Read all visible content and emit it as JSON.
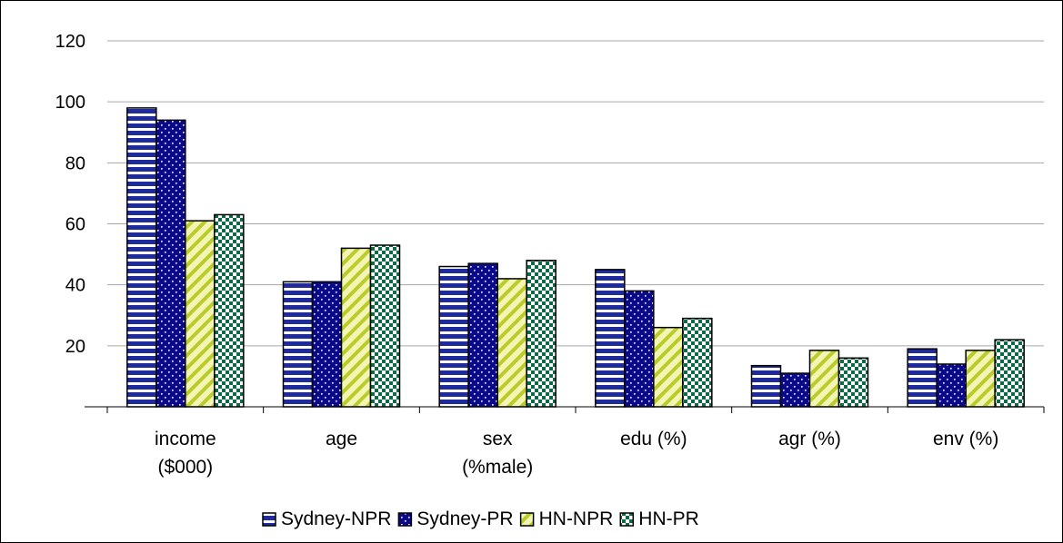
{
  "chart_data": {
    "type": "bar",
    "categories": [
      [
        "income",
        "($000)"
      ],
      [
        "age"
      ],
      [
        "sex",
        "(%male)"
      ],
      [
        "edu (%)"
      ],
      [
        "agr (%)"
      ],
      [
        "env (%)"
      ]
    ],
    "series": [
      {
        "name": "Sydney-NPR",
        "values": [
          98,
          41,
          46,
          45,
          13.5,
          19
        ],
        "pattern": "hstripe",
        "color": "#1f2a9c"
      },
      {
        "name": "Sydney-PR",
        "values": [
          94,
          41,
          47,
          38,
          11,
          14
        ],
        "pattern": "dots",
        "color": "#0a0a8a"
      },
      {
        "name": "HN-NPR",
        "values": [
          61,
          52,
          42,
          26,
          18.5,
          18.5
        ],
        "pattern": "diagonal",
        "color": "#b8cc2a"
      },
      {
        "name": "HN-PR",
        "values": [
          63,
          53,
          48,
          29,
          16,
          22
        ],
        "pattern": "checker",
        "color": "#0b6b45"
      }
    ],
    "y_ticks": [
      20,
      40,
      60,
      80,
      100,
      120
    ],
    "ylim": [
      0,
      120
    ],
    "grid": true,
    "legend_position": "bottom"
  }
}
